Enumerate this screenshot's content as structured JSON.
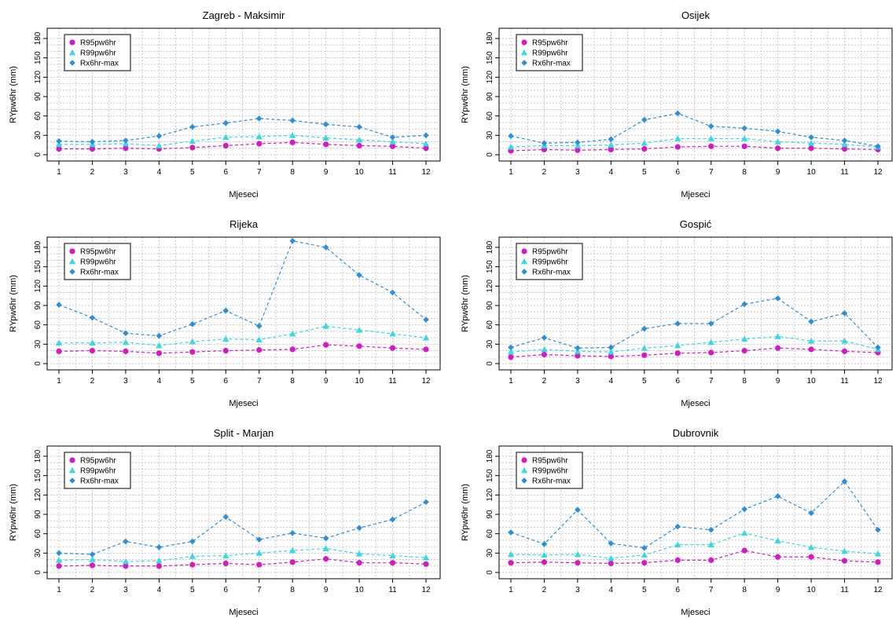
{
  "colors": {
    "R95pw6hr": "#d41ac4",
    "R99pw6hr": "#3ad8e0",
    "Rx6hr-max": "#2b8fdc"
  },
  "chart_data": [
    {
      "type": "line",
      "title": "Zagreb - Maksimir",
      "xlabel": "Mjeseci",
      "ylabel": "RYpw6hr (mm)",
      "x": [
        1,
        2,
        3,
        4,
        5,
        6,
        7,
        8,
        9,
        10,
        11,
        12
      ],
      "ylim": [
        0,
        180
      ],
      "yticks": [
        0,
        30,
        60,
        90,
        120,
        150,
        180
      ],
      "legend_position": "top-left",
      "series": [
        {
          "name": "R95pw6hr",
          "values": [
            9,
            9,
            10,
            9,
            11,
            14,
            17,
            19,
            16,
            14,
            13,
            10
          ]
        },
        {
          "name": "R99pw6hr",
          "values": [
            16,
            16,
            17,
            14,
            21,
            27,
            28,
            30,
            26,
            23,
            20,
            17
          ]
        },
        {
          "name": "Rx6hr-max",
          "values": [
            21,
            20,
            22,
            29,
            43,
            49,
            56,
            53,
            47,
            43,
            27,
            30
          ]
        }
      ]
    },
    {
      "type": "line",
      "title": "Osijek",
      "xlabel": "Mjeseci",
      "ylabel": "RYpw6hr (mm)",
      "x": [
        1,
        2,
        3,
        4,
        5,
        6,
        7,
        8,
        9,
        10,
        11,
        12
      ],
      "ylim": [
        0,
        180
      ],
      "yticks": [
        0,
        30,
        60,
        90,
        120,
        150,
        180
      ],
      "legend_position": "top-left",
      "series": [
        {
          "name": "R95pw6hr",
          "values": [
            6,
            8,
            7,
            8,
            9,
            12,
            13,
            13,
            10,
            10,
            9,
            8
          ]
        },
        {
          "name": "R99pw6hr",
          "values": [
            12,
            14,
            14,
            15,
            18,
            25,
            25,
            25,
            20,
            18,
            16,
            12
          ]
        },
        {
          "name": "Rx6hr-max",
          "values": [
            29,
            18,
            19,
            24,
            54,
            64,
            44,
            41,
            36,
            27,
            22,
            13
          ]
        }
      ]
    },
    {
      "type": "line",
      "title": "Rijeka",
      "xlabel": "Mjeseci",
      "ylabel": "RYpw6hr (mm)",
      "x": [
        1,
        2,
        3,
        4,
        5,
        6,
        7,
        8,
        9,
        10,
        11,
        12
      ],
      "ylim": [
        0,
        180
      ],
      "yticks": [
        0,
        30,
        60,
        90,
        120,
        150,
        180
      ],
      "legend_position": "top-left",
      "series": [
        {
          "name": "R95pw6hr",
          "values": [
            19,
            20,
            19,
            16,
            18,
            20,
            21,
            22,
            29,
            27,
            24,
            22
          ]
        },
        {
          "name": "R99pw6hr",
          "values": [
            32,
            32,
            33,
            28,
            34,
            38,
            37,
            46,
            58,
            52,
            46,
            40
          ]
        },
        {
          "name": "Rx6hr-max",
          "values": [
            91,
            71,
            47,
            43,
            61,
            82,
            58,
            190,
            180,
            137,
            110,
            68
          ]
        }
      ]
    },
    {
      "type": "line",
      "title": "Gospić",
      "xlabel": "Mjeseci",
      "ylabel": "RYpw6hr (mm)",
      "x": [
        1,
        2,
        3,
        4,
        5,
        6,
        7,
        8,
        9,
        10,
        11,
        12
      ],
      "ylim": [
        0,
        180
      ],
      "yticks": [
        0,
        30,
        60,
        90,
        120,
        150,
        180
      ],
      "legend_position": "top-left",
      "series": [
        {
          "name": "R95pw6hr",
          "values": [
            10,
            14,
            12,
            11,
            13,
            16,
            17,
            20,
            24,
            22,
            19,
            17
          ]
        },
        {
          "name": "R99pw6hr",
          "values": [
            18,
            22,
            19,
            18,
            24,
            28,
            33,
            38,
            42,
            35,
            35,
            22
          ]
        },
        {
          "name": "Rx6hr-max",
          "values": [
            25,
            40,
            24,
            25,
            54,
            62,
            62,
            92,
            101,
            65,
            78,
            25
          ]
        }
      ]
    },
    {
      "type": "line",
      "title": "Split - Marjan",
      "xlabel": "Mjeseci",
      "ylabel": "RYpw6hr (mm)",
      "x": [
        1,
        2,
        3,
        4,
        5,
        6,
        7,
        8,
        9,
        10,
        11,
        12
      ],
      "ylim": [
        0,
        180
      ],
      "yticks": [
        0,
        30,
        60,
        90,
        120,
        150,
        180
      ],
      "legend_position": "top-left",
      "series": [
        {
          "name": "R95pw6hr",
          "values": [
            10,
            11,
            10,
            10,
            12,
            14,
            12,
            16,
            21,
            15,
            15,
            13
          ]
        },
        {
          "name": "R99pw6hr",
          "values": [
            19,
            20,
            17,
            18,
            25,
            26,
            30,
            34,
            37,
            29,
            26,
            23
          ]
        },
        {
          "name": "Rx6hr-max",
          "values": [
            30,
            28,
            48,
            39,
            48,
            86,
            51,
            61,
            53,
            69,
            82,
            109
          ]
        }
      ]
    },
    {
      "type": "line",
      "title": "Dubrovnik",
      "xlabel": "Mjeseci",
      "ylabel": "RYpw6hr (mm)",
      "x": [
        1,
        2,
        3,
        4,
        5,
        6,
        7,
        8,
        9,
        10,
        11,
        12
      ],
      "ylim": [
        0,
        180
      ],
      "yticks": [
        0,
        30,
        60,
        90,
        120,
        150,
        180
      ],
      "legend_position": "top-left",
      "series": [
        {
          "name": "R95pw6hr",
          "values": [
            15,
            16,
            15,
            14,
            15,
            19,
            19,
            34,
            24,
            24,
            18,
            16
          ]
        },
        {
          "name": "R99pw6hr",
          "values": [
            28,
            27,
            28,
            22,
            27,
            43,
            43,
            61,
            49,
            39,
            33,
            29
          ]
        },
        {
          "name": "Rx6hr-max",
          "values": [
            62,
            44,
            97,
            45,
            38,
            71,
            66,
            98,
            118,
            92,
            141,
            66
          ]
        }
      ]
    }
  ]
}
